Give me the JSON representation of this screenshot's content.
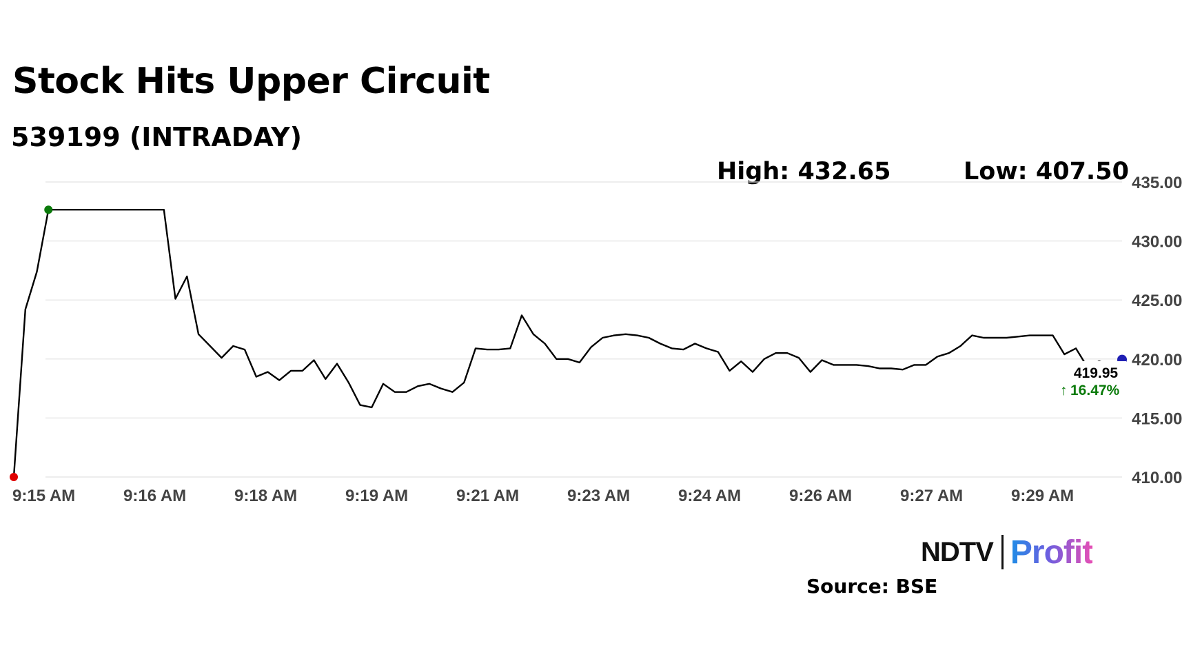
{
  "header": {
    "title": "Stock Hits Upper Circuit",
    "subtitle": "539199 (INTRADAY)",
    "high_label": "High: 432.65",
    "low_label": "Low: 407.50"
  },
  "footer": {
    "logo_ndtv": "NDTV",
    "logo_profit": "Profit",
    "source": "Source: BSE"
  },
  "colors": {
    "line": "#000000",
    "start_marker": "#e00000",
    "high_marker": "#0a7a0a",
    "last_marker": "#1f1fb4",
    "change_text": "#0a7a0a",
    "grid": "#e2e2e2",
    "axis_text": "#444444"
  },
  "chart_data": {
    "type": "line",
    "title": "Stock Hits Upper Circuit",
    "subtitle": "539199 (INTRADAY)",
    "ylim": [
      410,
      435
    ],
    "y_ticks": [
      "410.00",
      "415.00",
      "420.00",
      "425.00",
      "430.00",
      "435.00"
    ],
    "x_ticks": [
      "9:15 AM",
      "9:16 AM",
      "9:18 AM",
      "9:19 AM",
      "9:21 AM",
      "9:23 AM",
      "9:24 AM",
      "9:26 AM",
      "9:27 AM",
      "9:29 AM"
    ],
    "grid": true,
    "last_value": "419.95",
    "change_label": "16.47%",
    "series": [
      {
        "values": [
          410.0,
          424.2,
          427.4,
          432.65,
          432.65,
          432.65,
          432.65,
          432.65,
          432.65,
          432.65,
          432.65,
          432.65,
          432.65,
          432.65,
          425.1,
          427.0,
          422.1,
          421.1,
          420.1,
          421.1,
          420.8,
          418.5,
          418.9,
          418.2,
          419.0,
          419.0,
          419.9,
          418.3,
          419.6,
          418.0,
          416.1,
          415.9,
          417.9,
          417.2,
          417.2,
          417.7,
          417.9,
          417.5,
          417.2,
          418.0,
          420.9,
          420.8,
          420.8,
          420.9,
          423.7,
          422.1,
          421.3,
          420.0,
          420.0,
          419.7,
          421.0,
          421.8,
          422.0,
          422.1,
          422.0,
          421.8,
          421.3,
          420.9,
          420.8,
          421.3,
          420.9,
          420.6,
          419.0,
          419.8,
          418.9,
          420.0,
          420.5,
          420.5,
          420.1,
          418.9,
          419.9,
          419.5,
          419.5,
          419.5,
          419.4,
          419.2,
          419.2,
          419.1,
          419.5,
          419.5,
          420.2,
          420.5,
          421.1,
          422.0,
          421.8,
          421.8,
          421.8,
          421.9,
          422.0,
          422.0,
          422.0,
          420.4,
          420.9,
          419.3,
          419.8,
          419.5,
          419.95
        ]
      }
    ]
  }
}
